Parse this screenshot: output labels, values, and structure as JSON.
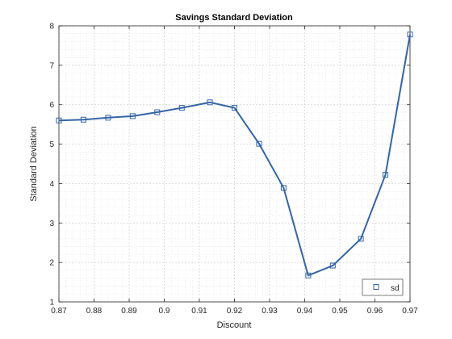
{
  "chart_data": {
    "type": "line",
    "title": "Savings Standard Deviation",
    "xlabel": "Discount",
    "ylabel": "Standard Deviation",
    "xlim": [
      0.87,
      0.97
    ],
    "ylim": [
      1,
      8
    ],
    "x_ticks": [
      0.87,
      0.88,
      0.89,
      0.9,
      0.91,
      0.92,
      0.93,
      0.94,
      0.95,
      0.96,
      0.97
    ],
    "y_ticks": [
      1,
      2,
      3,
      4,
      5,
      6,
      7,
      8
    ],
    "x_tick_labels": [
      "0.87",
      "0.88",
      "0.89",
      "0.9",
      "0.91",
      "0.92",
      "0.93",
      "0.94",
      "0.95",
      "0.96",
      "0.97"
    ],
    "y_tick_labels": [
      "1",
      "2",
      "3",
      "4",
      "5",
      "6",
      "7",
      "8"
    ],
    "grid": true,
    "minor_grid": true,
    "legend_position": "bottom-right",
    "series": [
      {
        "name": "sd",
        "marker": "square",
        "color": "#3465a4",
        "x": [
          0.87,
          0.877,
          0.884,
          0.891,
          0.898,
          0.905,
          0.913,
          0.92,
          0.927,
          0.934,
          0.941,
          0.948,
          0.956,
          0.963,
          0.97
        ],
        "y": [
          5.6,
          5.62,
          5.67,
          5.71,
          5.81,
          5.92,
          6.06,
          5.92,
          5.01,
          3.89,
          1.67,
          1.92,
          2.6,
          4.22,
          7.78
        ]
      }
    ]
  }
}
